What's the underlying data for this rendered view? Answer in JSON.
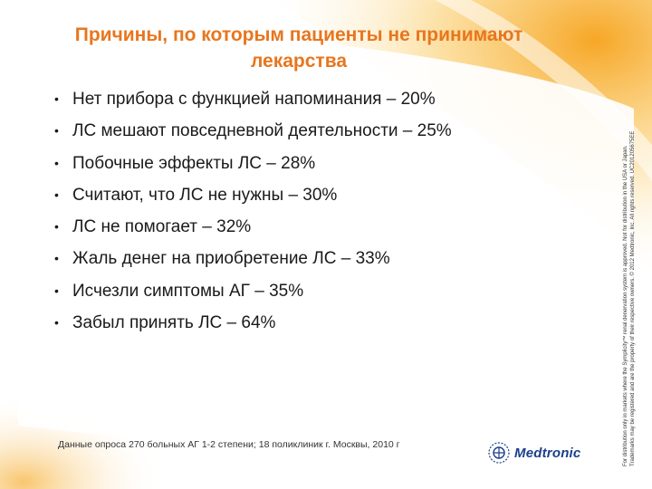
{
  "slide": {
    "title": "Причины, по которым пациенты не принимают лекарства",
    "bullets": [
      "Нет прибора с функцией напоминания – 20%",
      "ЛС мешают повседневной деятельности – 25%",
      "Побочные эффекты ЛС – 28%",
      "Считают, что ЛС не нужны – 30%",
      "ЛС не помогает – 32%",
      "Жаль денег на приобретение ЛС – 33%",
      "Исчезли симптомы АГ – 35%",
      "Забыл принять ЛС – 64%"
    ],
    "bullet_glyph": "•",
    "source": "Данные опроса 270 больных АГ 1-2 степени; 18 поликлиник г. Москвы, 2010 г",
    "legal_line_1": "For distribution only in markets where the Symplicity™ renal denervation system is approved. Not for distribution in the USA or Japan.",
    "legal_line_2": "Trademarks may be registered and are the property of their respective owners. © 2012 Medtronic, Inc. All rights reserved. UC201205675EE",
    "logo_text": "Medtronic"
  },
  "colors": {
    "title": "#e8761e",
    "swoosh_outer": "#f6a21a",
    "swoosh_inner": "#fde7b8",
    "logo": "#1b3f8b"
  }
}
